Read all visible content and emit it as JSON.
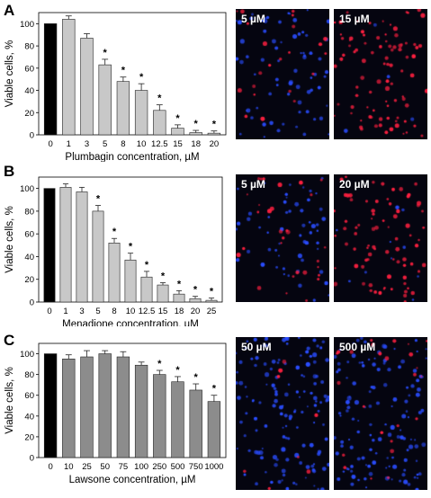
{
  "panels": [
    {
      "letter": "A",
      "images": [
        {
          "label": "5 µM"
        },
        {
          "label": "15 µM"
        }
      ]
    },
    {
      "letter": "B",
      "images": [
        {
          "label": "5 µM"
        },
        {
          "label": "20 µM"
        }
      ]
    },
    {
      "letter": "C",
      "images": [
        {
          "label": "50 µM"
        },
        {
          "label": "500 µM"
        }
      ]
    }
  ],
  "colors": {
    "control": "#000000",
    "panelA": "#c8c8c8",
    "panelB": "#c8c8c8",
    "panelC": "#8c8c8c",
    "nucleusBlue": "#2a4dff",
    "deadRed": "#ff2040",
    "micrographBg": "#050510"
  },
  "chart_data": [
    {
      "type": "bar",
      "ylabel": "Viable cells, %",
      "xlabel": "Plumbagin concentration, µM",
      "ylim": [
        0,
        110
      ],
      "yticks": [
        0,
        20,
        40,
        60,
        80,
        100
      ],
      "categories": [
        "0",
        "1",
        "3",
        "5",
        "8",
        "10",
        "12.5",
        "15",
        "18",
        "20"
      ],
      "values": [
        100,
        104,
        87,
        63,
        48,
        40,
        22,
        6,
        2,
        1.5
      ],
      "errors": [
        0,
        3,
        4,
        5,
        4,
        6,
        5,
        3,
        2,
        2
      ],
      "significant": [
        false,
        false,
        false,
        true,
        true,
        true,
        true,
        true,
        true,
        true
      ],
      "marker": "*",
      "grid": false
    },
    {
      "type": "bar",
      "ylabel": "Viable cells, %",
      "xlabel": "Menadione concentration, µM",
      "ylim": [
        0,
        110
      ],
      "yticks": [
        0,
        20,
        40,
        60,
        80,
        100
      ],
      "categories": [
        "0",
        "1",
        "3",
        "5",
        "8",
        "10",
        "12.5",
        "15",
        "18",
        "20",
        "25"
      ],
      "values": [
        100,
        101,
        97,
        80,
        52,
        37,
        22,
        15,
        7,
        3,
        1.5
      ],
      "errors": [
        0,
        3,
        4,
        5,
        4,
        6,
        5,
        2,
        3,
        2,
        2
      ],
      "significant": [
        false,
        false,
        false,
        true,
        true,
        true,
        true,
        true,
        true,
        true,
        true
      ],
      "marker": "*",
      "grid": false
    },
    {
      "type": "bar",
      "ylabel": "Viable cells, %",
      "xlabel": "Lawsone concentration, µM",
      "ylim": [
        0,
        110
      ],
      "yticks": [
        0,
        20,
        40,
        60,
        80,
        100
      ],
      "categories": [
        "0",
        "10",
        "25",
        "50",
        "75",
        "100",
        "250",
        "500",
        "750",
        "1000"
      ],
      "values": [
        100,
        95,
        97,
        100,
        97,
        89,
        80,
        73,
        65,
        54
      ],
      "errors": [
        0,
        4,
        6,
        3,
        5,
        3,
        4,
        5,
        6,
        6
      ],
      "significant": [
        false,
        false,
        false,
        false,
        false,
        false,
        true,
        true,
        true,
        true
      ],
      "marker": "*",
      "grid": false
    }
  ]
}
